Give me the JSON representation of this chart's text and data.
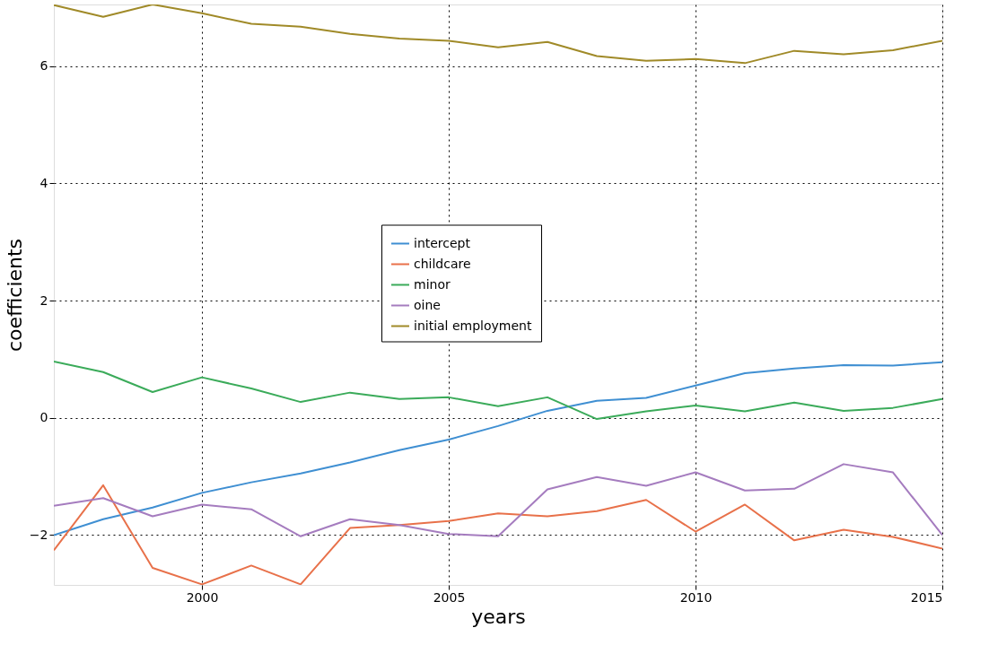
{
  "chart_data": {
    "type": "line",
    "xlabel": "years",
    "ylabel": "coefficients",
    "x": [
      1997,
      1998,
      1999,
      2000,
      2001,
      2002,
      2003,
      2004,
      2005,
      2006,
      2007,
      2008,
      2009,
      2010,
      2011,
      2012,
      2013,
      2014,
      2015
    ],
    "series": [
      {
        "name": "intercept",
        "color": "#3f8fd2",
        "values": [
          -2.0,
          -1.73,
          -1.53,
          -1.28,
          -1.1,
          -0.95,
          -0.76,
          -0.55,
          -0.37,
          -0.14,
          0.12,
          0.29,
          0.34,
          0.55,
          0.76,
          0.84,
          0.9,
          0.89,
          0.95
        ]
      },
      {
        "name": "childcare",
        "color": "#e8714a",
        "values": [
          -2.26,
          -1.15,
          -2.56,
          -2.84,
          -2.52,
          -2.84,
          -1.88,
          -1.83,
          -1.76,
          -1.63,
          -1.68,
          -1.59,
          -1.4,
          -1.94,
          -1.48,
          -2.09,
          -1.91,
          -2.03,
          -2.23
        ]
      },
      {
        "name": "minor",
        "color": "#3bab5a",
        "values": [
          0.96,
          0.78,
          0.44,
          0.69,
          0.5,
          0.27,
          0.43,
          0.32,
          0.35,
          0.2,
          0.35,
          -0.02,
          0.11,
          0.21,
          0.11,
          0.26,
          0.12,
          0.17,
          0.32
        ]
      },
      {
        "name": "oine",
        "color": "#a57cbf",
        "values": [
          -1.5,
          -1.37,
          -1.68,
          -1.48,
          -1.56,
          -2.02,
          -1.73,
          -1.83,
          -1.98,
          -2.02,
          -1.22,
          -1.01,
          -1.16,
          -0.93,
          -1.24,
          -1.21,
          -0.79,
          -0.93,
          -2.0
        ]
      },
      {
        "name": "initial employment",
        "color": "#a08a28",
        "values": [
          7.04,
          6.84,
          7.05,
          6.9,
          6.72,
          6.67,
          6.55,
          6.47,
          6.43,
          6.32,
          6.41,
          6.17,
          6.09,
          6.12,
          6.05,
          6.26,
          6.2,
          6.27,
          6.43
        ]
      }
    ],
    "xlim": [
      1997,
      2015
    ],
    "xticks": [
      2000,
      2005,
      2010,
      2015
    ],
    "ylim": [
      -2.85,
      7.05
    ],
    "yticks": [
      -2,
      0,
      2,
      4,
      6
    ],
    "grid": true,
    "legend": "center",
    "line_style": "solid",
    "marker": "none"
  }
}
